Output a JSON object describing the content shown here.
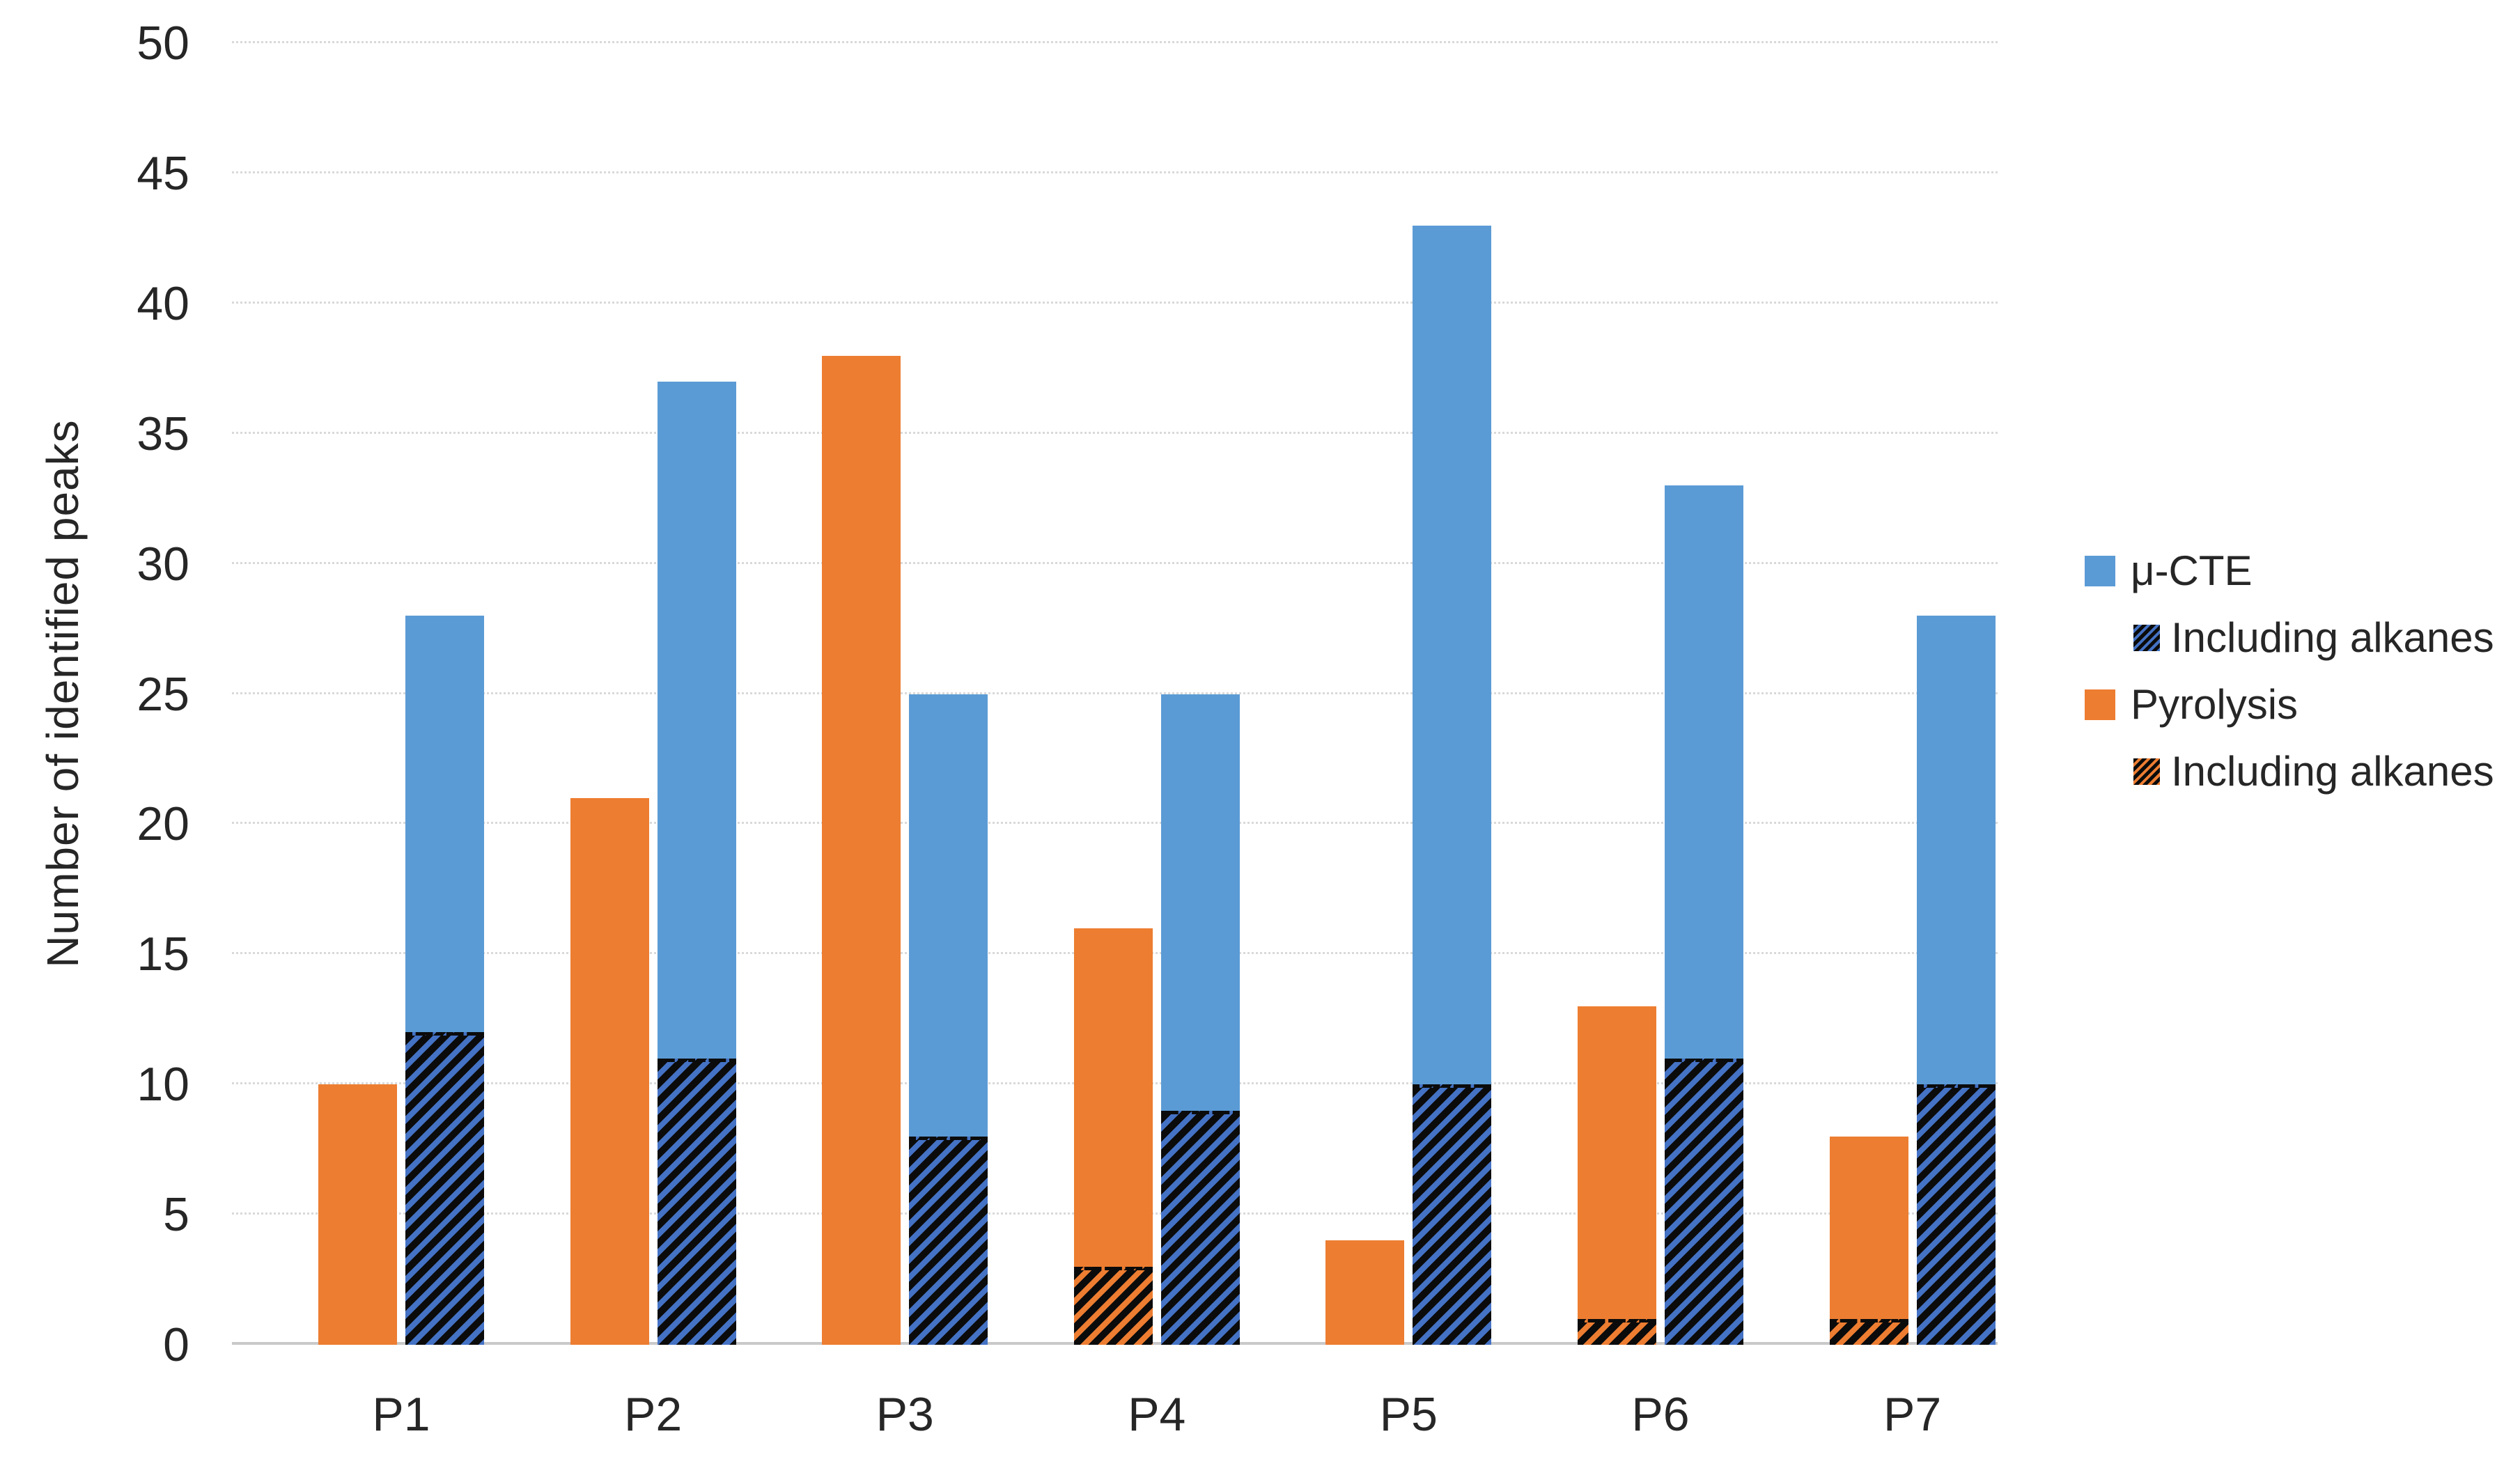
{
  "chart_data": {
    "type": "bar",
    "title": "",
    "ylabel": "Number of identified peaks",
    "xlabel": "",
    "categories": [
      "P1",
      "P2",
      "P3",
      "P4",
      "P5",
      "P6",
      "P7"
    ],
    "series": [
      {
        "name": "Pyrolysis",
        "style": "solid",
        "color": "#ED7D31",
        "values": [
          10,
          21,
          38,
          16,
          4,
          13,
          8
        ]
      },
      {
        "name": "Including alkanes",
        "subset_of": "Pyrolysis",
        "style": "hatched",
        "color": "#ED7D31",
        "stripe_color": "#000000",
        "values": [
          0,
          0,
          0,
          3,
          0,
          1,
          1
        ]
      },
      {
        "name": "μ-CTE",
        "style": "solid",
        "color": "#5B9BD5",
        "values": [
          28,
          37,
          25,
          25,
          43,
          33,
          28
        ]
      },
      {
        "name": "Including alkanes",
        "subset_of": "μ-CTE",
        "style": "hatched",
        "color": "#4472C4",
        "stripe_color": "#000000",
        "values": [
          12,
          11,
          8,
          9,
          10,
          11,
          10
        ]
      }
    ],
    "ylim": [
      0,
      50
    ],
    "ytick_step": 5,
    "yticks": [
      0,
      5,
      10,
      15,
      20,
      25,
      30,
      35,
      40,
      45,
      50
    ],
    "grid": "horizontal dotted gridlines every 5",
    "legend_position": "right"
  },
  "legend": {
    "items": [
      {
        "label": "μ-CTE",
        "swatch": "solid",
        "color": "#5B9BD5",
        "indent": false
      },
      {
        "label": "Including alkanes",
        "swatch": "hatched-blue",
        "color": "#4472C4",
        "indent": true
      },
      {
        "label": "Pyrolysis",
        "swatch": "solid",
        "color": "#ED7D31",
        "indent": false
      },
      {
        "label": "Including alkanes",
        "swatch": "hatched-orange",
        "color": "#ED7D31",
        "indent": true
      }
    ]
  },
  "colors": {
    "cte_blue": "#5B9BD5",
    "pyrolysis_orange": "#ED7D31",
    "hatch_blue_base": "#4472C4",
    "hatch_stripe": "#000000",
    "gridline": "#D9D9D9",
    "axis_line": "#C9C9C9",
    "text": "#262626",
    "background": "#FFFFFF"
  }
}
